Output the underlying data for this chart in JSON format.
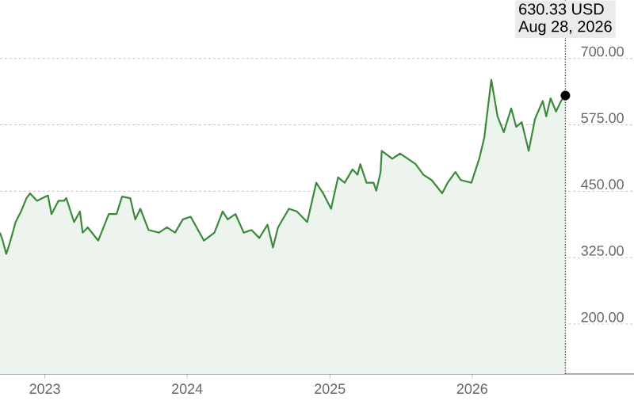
{
  "chart_data": {
    "type": "area",
    "color": "#3b8a3b",
    "x": [
      "2022-09-08",
      "2022-09-15",
      "2022-09-24",
      "2022-10-05",
      "2022-10-18",
      "2022-11-01",
      "2022-11-15",
      "2022-11-24",
      "2022-12-12",
      "2022-12-26",
      "2023-01-09",
      "2023-01-18",
      "2023-02-05",
      "2023-02-19",
      "2023-02-25",
      "2023-03-17",
      "2023-04-01",
      "2023-04-08",
      "2023-04-21",
      "2023-05-18",
      "2023-06-14",
      "2023-07-04",
      "2023-07-18",
      "2023-08-08",
      "2023-08-21",
      "2023-09-03",
      "2023-09-24",
      "2023-10-21",
      "2023-11-10",
      "2023-12-01",
      "2023-12-21",
      "2024-01-10",
      "2024-02-13",
      "2024-03-11",
      "2024-04-01",
      "2024-04-14",
      "2024-05-04",
      "2024-05-25",
      "2024-06-14",
      "2024-07-04",
      "2024-07-25",
      "2024-08-08",
      "2024-08-21",
      "2024-09-18",
      "2024-10-08",
      "2024-11-04",
      "2024-11-27",
      "2024-12-15",
      "2025-01-04",
      "2025-01-22",
      "2025-02-08",
      "2025-02-28",
      "2025-03-13",
      "2025-03-20",
      "2025-04-05",
      "2025-04-23",
      "2025-04-30",
      "2025-05-11",
      "2025-05-14",
      "2025-06-10",
      "2025-06-30",
      "2025-07-20",
      "2025-08-09",
      "2025-08-29",
      "2025-09-19",
      "2025-10-16",
      "2025-10-30",
      "2025-11-19",
      "2025-12-03",
      "2025-12-30",
      "2026-01-19",
      "2026-02-01",
      "2026-02-19",
      "2026-03-07",
      "2026-03-23",
      "2026-04-11",
      "2026-04-24",
      "2026-05-08",
      "2026-05-26",
      "2026-06-11",
      "2026-07-01",
      "2026-07-10",
      "2026-07-21",
      "2026-08-04",
      "2026-08-17",
      "2026-08-28"
    ],
    "values": [
      372,
      357,
      332,
      357,
      392,
      412,
      437,
      446,
      432,
      437,
      442,
      407,
      432,
      432,
      437,
      392,
      412,
      372,
      382,
      357,
      407,
      407,
      440,
      437,
      397,
      417,
      377,
      372,
      382,
      372,
      397,
      402,
      357,
      372,
      412,
      397,
      407,
      372,
      377,
      362,
      387,
      344,
      382,
      417,
      412,
      392,
      466,
      446,
      417,
      476,
      466,
      491,
      481,
      501,
      466,
      466,
      451,
      486,
      526,
      511,
      521,
      511,
      501,
      481,
      471,
      446,
      466,
      486,
      471,
      466,
      511,
      551,
      660,
      591,
      561,
      606,
      571,
      580,
      526,
      586,
      620,
      591,
      625,
      600,
      620,
      630.33
    ],
    "xlim": [
      "2022-09-08",
      "2027-02-20"
    ],
    "ylim": [
      106,
      810
    ],
    "xticks": [
      "2023",
      "2024",
      "2025",
      "2026"
    ],
    "yticks": [
      {
        "value": 200,
        "label": "200.00"
      },
      {
        "value": 325,
        "label": "325.00"
      },
      {
        "value": 450,
        "label": "450.00"
      },
      {
        "value": 575,
        "label": "575.00"
      },
      {
        "value": 700,
        "label": "700.00"
      }
    ],
    "grid": "y",
    "marker": "none",
    "line_style": "solid",
    "ref_lines": [
      {
        "axis": "x",
        "value": "2026-08-28",
        "label": "Aug 28, 2026",
        "line_style": "dotted",
        "color": "#444444"
      }
    ],
    "annotations": [
      "630.33 USD"
    ]
  }
}
